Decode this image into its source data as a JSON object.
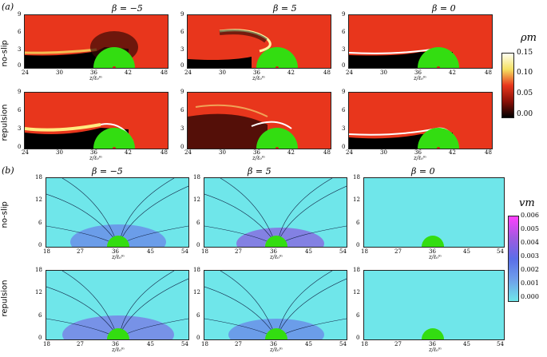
{
  "part_a": {
    "label": "(a)",
    "columns": [
      "β = −5",
      "β = 5",
      "β = 0"
    ],
    "rows": [
      "no-slip",
      "repulsion"
    ],
    "x_ticks": [
      "24",
      "30",
      "36",
      "42",
      "48"
    ],
    "y_ticks": [
      "9",
      "6",
      "3",
      "0"
    ],
    "x_axis": "z/ℓ₀ᵐ",
    "y_axis": "r/ℓ₀ᵐ",
    "colorbar": {
      "title": "ρm",
      "ticks": [
        "0.15",
        "0.10",
        "0.05",
        "0.00"
      ]
    }
  },
  "part_b": {
    "label": "(b)",
    "columns": [
      "β = −5",
      "β = 5",
      "β = 0"
    ],
    "rows": [
      "no-slip",
      "repulsion"
    ],
    "x_ticks": [
      "18",
      "27",
      "36",
      "45",
      "54"
    ],
    "y_ticks": [
      "18",
      "12",
      "6",
      "0"
    ],
    "x_axis": "z/ℓ₀ᵐ",
    "y_axis": "r/ℓ₀ᵐ",
    "colorbar": {
      "title": "vm",
      "ticks": [
        "0.006",
        "0.005",
        "0.004",
        "0.003",
        "0.002",
        "0.001",
        "0.000"
      ]
    }
  },
  "colors": {
    "hot": "#e8361c",
    "cool": "#6fe6ea",
    "sphere": "#33dd11",
    "accent": "#e0201a"
  }
}
